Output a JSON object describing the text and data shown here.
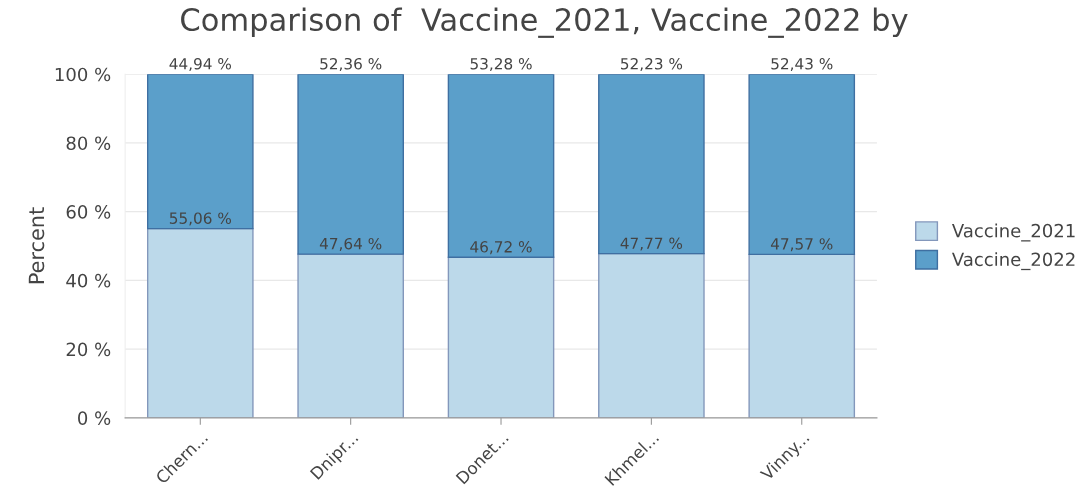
{
  "chart_data": {
    "type": "bar",
    "title": "Comparison of  Vaccine_2021, Vaccine_2022 by",
    "ylabel": "Percent",
    "categories": [
      "Chern...",
      "Dnipr...",
      "Donet...",
      "Khmel...",
      "Vinny..."
    ],
    "stacked": true,
    "series": [
      {
        "name": "Vaccine_2021",
        "color": "#bcd9ea",
        "values": [
          55.06,
          47.64,
          46.72,
          47.77,
          47.57
        ],
        "value_labels": [
          "55,06 %",
          "47,64 %",
          "46,72 %",
          "47,77 %",
          "47,57 %"
        ]
      },
      {
        "name": "Vaccine_2022",
        "color": "#5b9fca",
        "values": [
          44.94,
          52.36,
          53.28,
          52.23,
          52.43
        ],
        "value_labels": [
          "44,94 %",
          "52,36 %",
          "53,28 %",
          "52,23 %",
          "52,43 %"
        ]
      }
    ],
    "ylim": [
      0,
      100
    ],
    "yticks": [
      {
        "value": 0,
        "label": "0 %"
      },
      {
        "value": 20,
        "label": "20 %"
      },
      {
        "value": 40,
        "label": "40 %"
      },
      {
        "value": 60,
        "label": "60 %"
      },
      {
        "value": 80,
        "label": "80 %"
      },
      {
        "value": 100,
        "label": "100 %"
      }
    ],
    "grid": "y",
    "legend": "right"
  }
}
